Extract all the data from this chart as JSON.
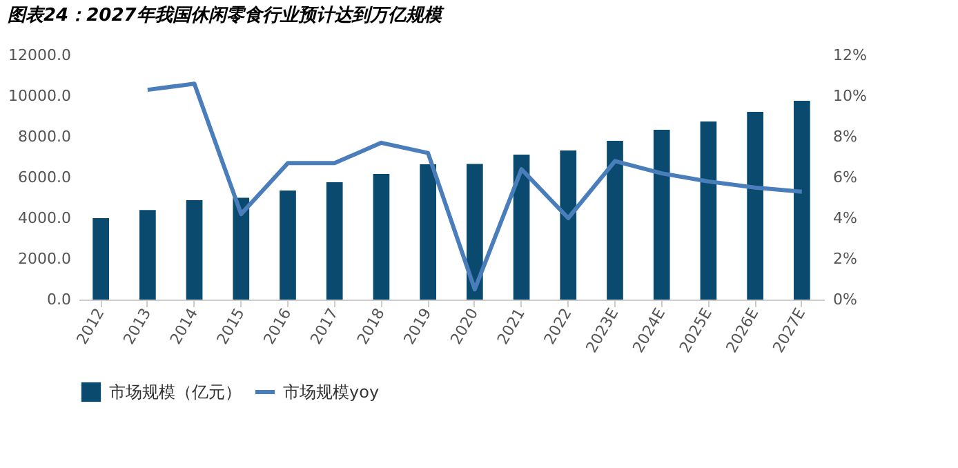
{
  "chart_data": {
    "type": "bar",
    "title": "图表24：2027年我国休闲零食行业预计达到万亿规模",
    "categories": [
      "2012",
      "2013",
      "2014",
      "2015",
      "2016",
      "2017",
      "2018",
      "2019",
      "2020",
      "2021",
      "2022",
      "2023E",
      "2024E",
      "2025E",
      "2026E",
      "2027E"
    ],
    "series": [
      {
        "name": "市场规模（亿元）",
        "color": "#0b4a6f",
        "values": [
          4000,
          4400,
          4880,
          5000,
          5360,
          5760,
          6170,
          6640,
          6660,
          7120,
          7320,
          7800,
          8340,
          8750,
          9220,
          9760
        ]
      },
      {
        "name": "市场规模yoy",
        "type": "line",
        "axis": "y2",
        "color": "#4a7ebb",
        "values": [
          null,
          10.3,
          10.6,
          4.2,
          6.7,
          6.7,
          7.7,
          7.2,
          0.5,
          6.4,
          4.0,
          6.8,
          6.2,
          5.8,
          5.5,
          5.3
        ]
      }
    ],
    "ylim": [
      0,
      12000
    ],
    "yticks": [
      {
        "value": 0,
        "label": "0.0"
      },
      {
        "value": 2000,
        "label": "2000.0"
      },
      {
        "value": 4000,
        "label": "4000.0"
      },
      {
        "value": 6000,
        "label": "6000.0"
      },
      {
        "value": 8000,
        "label": "8000.0"
      },
      {
        "value": 10000,
        "label": "10000.0"
      },
      {
        "value": 12000,
        "label": "12000.0"
      }
    ],
    "y2lim": [
      0,
      12
    ],
    "y2ticks": [
      {
        "value": 0,
        "label": "0%"
      },
      {
        "value": 2,
        "label": "2%"
      },
      {
        "value": 4,
        "label": "4%"
      },
      {
        "value": 6,
        "label": "6%"
      },
      {
        "value": 8,
        "label": "8%"
      },
      {
        "value": 10,
        "label": "10%"
      },
      {
        "value": 12,
        "label": "12%"
      }
    ],
    "legend": "bottom",
    "grid": false
  }
}
